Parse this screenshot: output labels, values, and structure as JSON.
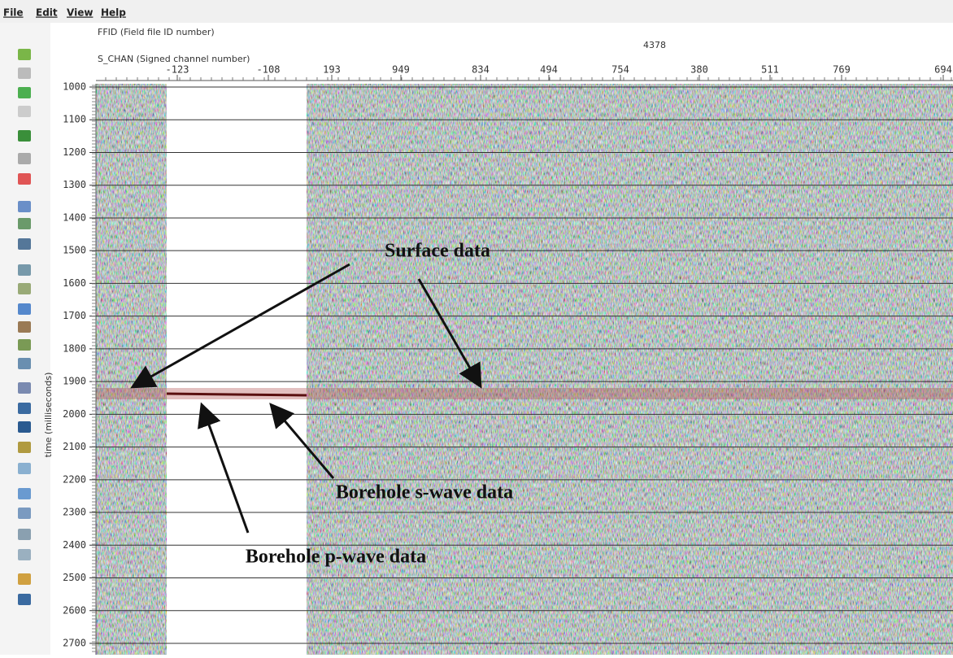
{
  "menu": [
    "File",
    "Edit",
    "View",
    "Help"
  ],
  "header": {
    "ffid_label": "FFID (Field file ID number)",
    "ffid_value": 4378,
    "s_chan_label": "S_CHAN (Signed channel number)",
    "s_chan_ticks": [
      -123,
      -108,
      193,
      949,
      834,
      494,
      754,
      380,
      511,
      769,
      694
    ]
  },
  "y_axis": {
    "label": "time (milliseconds)",
    "ticks": [
      1000,
      1100,
      1200,
      1300,
      1400,
      1500,
      1600,
      1700,
      1800,
      1900,
      2000,
      2100,
      2200,
      2300,
      2400,
      2500,
      2600,
      2700
    ]
  },
  "annotations": [
    "Surface data",
    "Borehole s-wave data",
    "Borehole p-wave data"
  ]
}
